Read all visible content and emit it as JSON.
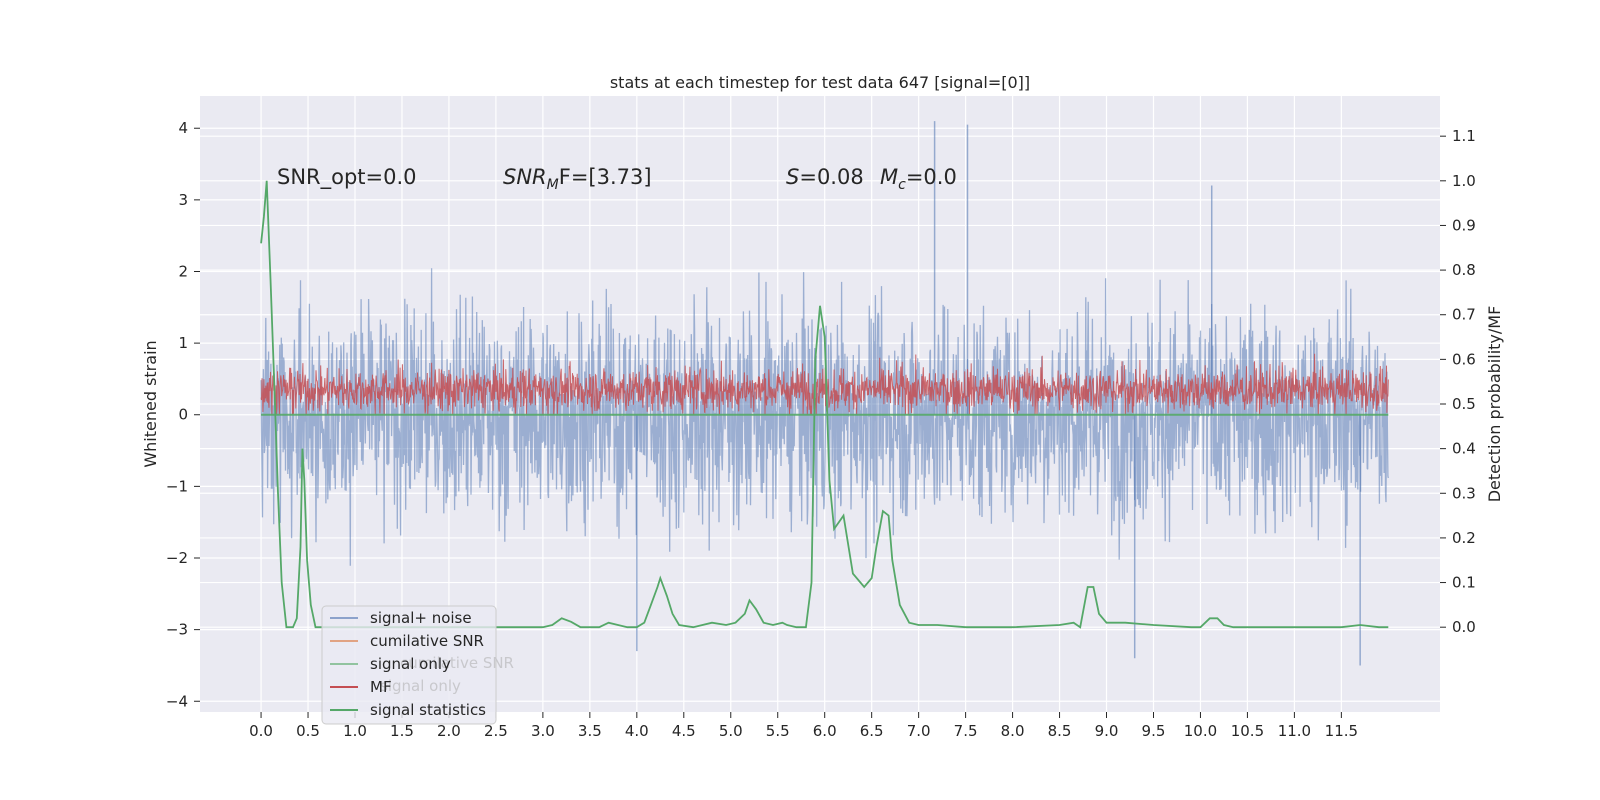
{
  "chart_data": {
    "type": "line",
    "title": "stats at each timestep for test data 647 [signal=[0]]",
    "xlabel": "",
    "ylabel": "Whitened strain",
    "y2label": "Detection probability/MF",
    "xlim": [
      -0.65,
      12.55
    ],
    "ylim": [
      -4.15,
      4.45
    ],
    "y2lim": [
      -0.19,
      1.19
    ],
    "x_ticks": [
      "0.0",
      "0.5",
      "1.0",
      "1.5",
      "2.0",
      "2.5",
      "3.0",
      "3.5",
      "4.0",
      "4.5",
      "5.0",
      "5.5",
      "6.0",
      "6.5",
      "7.0",
      "7.5",
      "8.0",
      "8.5",
      "9.0",
      "9.5",
      "10.0",
      "10.5",
      "11.0",
      "11.5"
    ],
    "y_ticks": [
      "4",
      "3",
      "2",
      "1",
      "0",
      "−1",
      "−2",
      "−3",
      "−4"
    ],
    "y2_ticks": [
      "1.1",
      "1.0",
      "0.9",
      "0.8",
      "0.7",
      "0.6",
      "0.5",
      "0.4",
      "0.3",
      "0.2",
      "0.1",
      "0.0"
    ],
    "annotations": {
      "snr_opt": "SNR_opt=0.0",
      "snr_mf_name": "SNR",
      "snr_mf_sub": "M",
      "snr_mf_rest": "F=[3.73]",
      "s_name": "S",
      "s_value": "=0.08",
      "mc_name": "M",
      "mc_sub": "c",
      "mc_value": "=0.0"
    },
    "legend": {
      "placement": "lower-left",
      "entries": [
        {
          "label": "signal+ noise",
          "color": "#4c72b0"
        },
        {
          "label": "cumilative SNR",
          "color": "#dd8452"
        },
        {
          "label": "signal only",
          "color": "#55a868"
        },
        {
          "label": "MF",
          "color": "#c44e52"
        },
        {
          "label": "signal statistics",
          "color": "#55a868"
        }
      ],
      "ghost_labels": [
        "cumilative SNR",
        "signal only"
      ]
    },
    "series": [
      {
        "name": "signal+ noise",
        "axis": "left",
        "color": "#4c72b0",
        "style": "noise band",
        "t_range": [
          0.0,
          12.0
        ],
        "approx_range": [
          -3.5,
          4.1
        ],
        "peaks": [
          [
            7.17,
            4.1
          ],
          [
            7.52,
            4.05
          ],
          [
            10.12,
            3.2
          ],
          [
            11.7,
            -3.5
          ],
          [
            4.0,
            -3.3
          ],
          [
            9.3,
            -3.4
          ]
        ]
      },
      {
        "name": "MF",
        "axis": "left",
        "color": "#c44e52",
        "style": "noise band",
        "t_range": [
          0.0,
          12.0
        ],
        "approx_range": [
          0.0,
          1.0
        ]
      },
      {
        "name": "signal only",
        "axis": "left",
        "color": "#55a868",
        "t_range": [
          0.0,
          12.0
        ],
        "value": 0.0
      },
      {
        "name": "signal statistics",
        "axis": "right",
        "color": "#55a868",
        "x": [
          0.0,
          0.03,
          0.06,
          0.1,
          0.14,
          0.18,
          0.22,
          0.27,
          0.3,
          0.34,
          0.38,
          0.42,
          0.44,
          0.46,
          0.49,
          0.53,
          0.58,
          0.65,
          0.8,
          1.0,
          1.5,
          2.0,
          2.5,
          3.0,
          3.1,
          3.2,
          3.3,
          3.4,
          3.6,
          3.7,
          3.8,
          3.9,
          4.0,
          4.08,
          4.15,
          4.22,
          4.25,
          4.32,
          4.38,
          4.45,
          4.6,
          4.8,
          4.95,
          5.05,
          5.15,
          5.2,
          5.27,
          5.35,
          5.45,
          5.55,
          5.6,
          5.7,
          5.75,
          5.8,
          5.86,
          5.9,
          5.95,
          6.0,
          6.05,
          6.1,
          6.2,
          6.3,
          6.42,
          6.5,
          6.55,
          6.62,
          6.68,
          6.72,
          6.8,
          6.9,
          7.0,
          7.2,
          7.5,
          8.0,
          8.5,
          8.65,
          8.72,
          8.8,
          8.86,
          8.92,
          9.0,
          9.2,
          9.5,
          9.9,
          10.0,
          10.1,
          10.18,
          10.25,
          10.35,
          10.5,
          11.0,
          11.5,
          11.7,
          11.9,
          12.0
        ],
        "y": [
          0.86,
          0.92,
          1.0,
          0.78,
          0.55,
          0.3,
          0.1,
          0.0,
          0.0,
          0.0,
          0.02,
          0.18,
          0.4,
          0.33,
          0.15,
          0.05,
          0.0,
          0.0,
          0.0,
          0.0,
          0.0,
          0.0,
          0.0,
          0.0,
          0.005,
          0.02,
          0.012,
          0.0,
          0.0,
          0.01,
          0.005,
          0.0,
          0.0,
          0.01,
          0.05,
          0.09,
          0.11,
          0.07,
          0.03,
          0.005,
          0.0,
          0.01,
          0.005,
          0.01,
          0.03,
          0.06,
          0.04,
          0.01,
          0.005,
          0.01,
          0.005,
          0.0,
          0.0,
          0.0,
          0.1,
          0.6,
          0.72,
          0.65,
          0.33,
          0.22,
          0.25,
          0.12,
          0.09,
          0.11,
          0.18,
          0.26,
          0.25,
          0.15,
          0.05,
          0.01,
          0.005,
          0.005,
          0.0,
          0.0,
          0.005,
          0.01,
          0.0,
          0.09,
          0.09,
          0.03,
          0.01,
          0.01,
          0.005,
          0.0,
          0.0,
          0.02,
          0.02,
          0.005,
          0.0,
          0.0,
          0.0,
          0.0,
          0.005,
          0.0,
          0.0
        ]
      }
    ]
  }
}
